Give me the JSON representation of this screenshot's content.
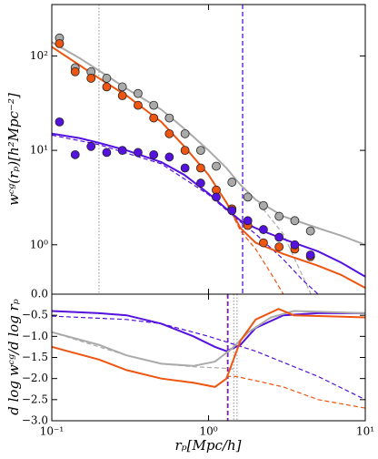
{
  "chart_data": [
    {
      "type": "line",
      "ylabel": "wᶜᵍ(rₚ)[h²Mpc⁻²]",
      "xlog": true,
      "ylog": true,
      "xlim": [
        0.1,
        10
      ],
      "ylim": [
        0.3,
        350
      ],
      "xticks": [
        0.1,
        1,
        10
      ],
      "yticks": [
        {
          "value": 1,
          "label": "10⁰"
        },
        {
          "value": 10,
          "label": "10¹"
        },
        {
          "value": 100,
          "label": "10²"
        }
      ],
      "vlines": [
        {
          "x": 0.2,
          "color": "#aaaaaa",
          "style": "dotted"
        },
        {
          "x": 1.65,
          "color": "#5511dd",
          "style": "dashed"
        }
      ],
      "series": [
        {
          "color": "#aaaaaa",
          "style": "solid",
          "x": [
            0.1,
            0.15,
            0.2,
            0.3,
            0.5,
            0.7,
            1,
            1.3,
            1.6,
            2,
            3,
            5,
            7,
            10
          ],
          "values": [
            140,
            95,
            70,
            45,
            27,
            17,
            10,
            6.5,
            4.3,
            3.0,
            2.0,
            1.5,
            1.25,
            1.0
          ]
        },
        {
          "color": "#ee5511",
          "style": "solid",
          "x": [
            0.1,
            0.15,
            0.2,
            0.3,
            0.5,
            0.7,
            1,
            1.3,
            1.6,
            2,
            3,
            5,
            7,
            10
          ],
          "values": [
            125,
            80,
            58,
            38,
            20,
            11,
            5.5,
            2.8,
            1.5,
            1.05,
            0.8,
            0.6,
            0.48,
            0.35
          ]
        },
        {
          "color": "#5511dd",
          "style": "solid",
          "x": [
            0.1,
            0.15,
            0.2,
            0.3,
            0.5,
            0.7,
            1,
            1.3,
            1.6,
            2,
            3,
            5,
            7,
            10
          ],
          "values": [
            15,
            13.5,
            12,
            10,
            7.5,
            5.5,
            3.5,
            2.4,
            1.8,
            1.5,
            1.15,
            0.85,
            0.65,
            0.46
          ]
        },
        {
          "color": "#aaaaaa",
          "style": "dashed",
          "x": [
            1,
            1.3,
            1.6,
            2,
            3,
            4.5
          ],
          "values": [
            10,
            6.5,
            4.3,
            3.0,
            1.3,
            0.3
          ]
        },
        {
          "color": "#ee5511",
          "style": "dashed",
          "x": [
            1,
            1.3,
            1.6,
            2,
            2.5,
            3
          ],
          "values": [
            5.5,
            2.8,
            1.4,
            0.9,
            0.5,
            0.3
          ]
        },
        {
          "color": "#5511dd",
          "style": "dashed",
          "x": [
            0.1,
            0.2,
            0.5,
            1,
            1.5,
            2,
            3,
            4,
            5
          ],
          "values": [
            14.5,
            11.5,
            7.2,
            3.4,
            1.9,
            1.3,
            0.7,
            0.42,
            0.3
          ]
        }
      ],
      "points": [
        {
          "color": "#aaaaaa",
          "x": [
            0.112,
            0.141,
            0.178,
            0.224,
            0.282,
            0.355,
            0.447,
            0.562,
            0.708,
            0.891,
            1.12,
            1.41,
            1.78,
            2.24,
            2.82,
            3.55,
            4.47
          ],
          "values": [
            155,
            75,
            68,
            58,
            47,
            40,
            30,
            22,
            15,
            10,
            6.8,
            4.6,
            3.2,
            2.6,
            2.0,
            1.8,
            1.4
          ]
        },
        {
          "color": "#ee5511",
          "x": [
            0.112,
            0.141,
            0.178,
            0.224,
            0.282,
            0.355,
            0.447,
            0.562,
            0.708,
            0.891,
            1.12,
            1.41,
            1.78,
            2.24,
            2.82,
            3.55,
            4.47
          ],
          "values": [
            135,
            68,
            58,
            47,
            38,
            30,
            22,
            15,
            10,
            6.5,
            3.8,
            2.4,
            1.6,
            1.05,
            0.95,
            0.9,
            0.75
          ]
        },
        {
          "color": "#5511dd",
          "x": [
            0.112,
            0.141,
            0.178,
            0.224,
            0.282,
            0.355,
            0.447,
            0.562,
            0.708,
            0.891,
            1.12,
            1.41,
            1.78,
            2.24,
            2.82,
            3.55,
            4.47
          ],
          "values": [
            20,
            9,
            11,
            9.5,
            10,
            9.5,
            9,
            8.5,
            6.5,
            4.5,
            3.2,
            2.3,
            1.8,
            1.45,
            1.2,
            1.0,
            0.78
          ]
        }
      ]
    },
    {
      "type": "line",
      "xlabel": "rₚ[Mpc/h]",
      "ylabel": "d log wᶜᵍ/d log rₚ",
      "xlog": true,
      "ylog": false,
      "xlim": [
        0.1,
        10
      ],
      "ylim": [
        -3.0,
        0.0
      ],
      "xticks": [
        {
          "value": 0.1,
          "label": "10⁻¹"
        },
        {
          "value": 1,
          "label": "10⁰"
        },
        {
          "value": 10,
          "label": "10¹"
        }
      ],
      "yticks": [
        {
          "value": -3.0,
          "label": "−3.0"
        },
        {
          "value": -2.5,
          "label": "−2.5"
        },
        {
          "value": -2.0,
          "label": "−2.0"
        },
        {
          "value": -1.5,
          "label": "−1.5"
        },
        {
          "value": -1.0,
          "label": "−1.0"
        },
        {
          "value": -0.5,
          "label": "−0.5"
        },
        {
          "value": 0.0,
          "label": "0.0"
        }
      ],
      "vlines": [
        {
          "x": 1.32,
          "color": "#ee5511",
          "style": "dashed"
        },
        {
          "x": 1.33,
          "color": "#5511dd",
          "style": "dashed"
        },
        {
          "x": 1.45,
          "color": "#aaaaaa",
          "style": "dotted"
        },
        {
          "x": 1.52,
          "color": "#aaaaaa",
          "style": "dotted"
        }
      ],
      "series": [
        {
          "color": "#5511dd",
          "style": "solid",
          "x": [
            0.1,
            0.2,
            0.3,
            0.5,
            0.8,
            1.1,
            1.3,
            1.6,
            2,
            3,
            5,
            10
          ],
          "values": [
            -0.4,
            -0.45,
            -0.5,
            -0.7,
            -1.0,
            -1.25,
            -1.35,
            -1.2,
            -0.8,
            -0.5,
            -0.45,
            -0.45
          ]
        },
        {
          "color": "#aaaaaa",
          "style": "solid",
          "x": [
            0.1,
            0.2,
            0.3,
            0.5,
            0.8,
            1.1,
            1.4,
            1.8,
            2.5,
            3.5,
            10
          ],
          "values": [
            -0.9,
            -1.2,
            -1.45,
            -1.65,
            -1.7,
            -1.6,
            -1.3,
            -0.9,
            -0.55,
            -0.4,
            -0.45
          ]
        },
        {
          "color": "#ee5511",
          "style": "solid",
          "x": [
            0.1,
            0.2,
            0.3,
            0.5,
            0.8,
            1.1,
            1.3,
            1.6,
            2,
            2.8,
            3.5,
            10
          ],
          "values": [
            -1.25,
            -1.55,
            -1.8,
            -2.0,
            -2.1,
            -2.2,
            -2.0,
            -1.1,
            -0.6,
            -0.35,
            -0.5,
            -0.55
          ]
        },
        {
          "color": "#5511dd",
          "style": "dashed",
          "x": [
            0.1,
            0.3,
            0.5,
            1,
            2,
            5,
            10
          ],
          "values": [
            -0.52,
            -0.6,
            -0.7,
            -1.0,
            -1.35,
            -1.95,
            -2.5
          ]
        },
        {
          "color": "#aaaaaa",
          "style": "dashed",
          "x": [
            0.1,
            0.3,
            0.5,
            0.8,
            1.2,
            1.5
          ],
          "values": [
            -0.9,
            -1.45,
            -1.65,
            -1.72,
            -1.75,
            -1.78
          ]
        },
        {
          "color": "#ee5511",
          "style": "dashed",
          "x": [
            1.3,
            1.5,
            2,
            3,
            5,
            10
          ],
          "values": [
            -1.95,
            -1.95,
            -2.05,
            -2.2,
            -2.5,
            -2.7
          ]
        }
      ]
    }
  ]
}
